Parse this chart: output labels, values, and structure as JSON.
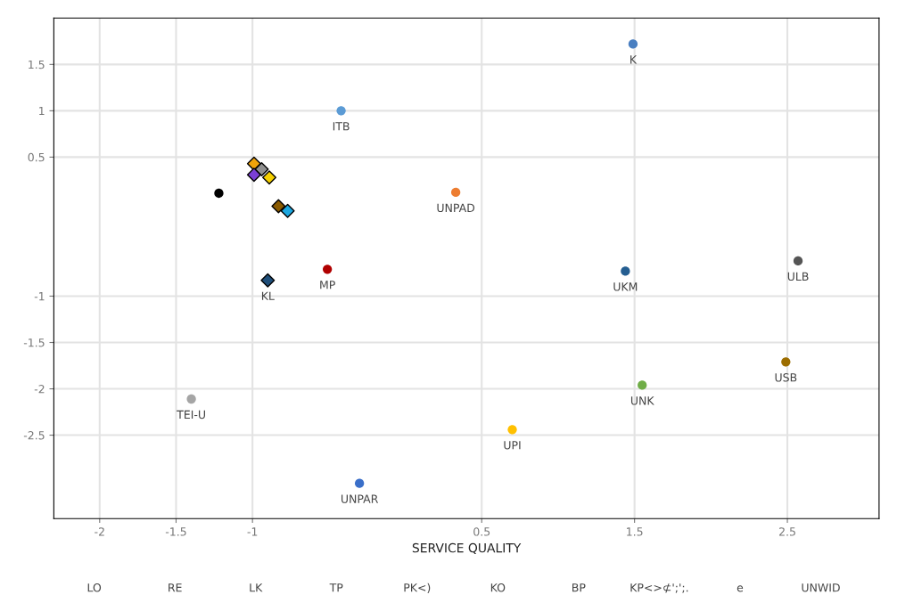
{
  "chart_data": {
    "type": "scatter",
    "xlabel": "SERVICE QUALITY",
    "xlim": [
      -2.3,
      3.1
    ],
    "ylim": [
      -3.4,
      2.0
    ],
    "xticks": [
      -2,
      -1.5,
      -1,
      0.5,
      1.5,
      2.5
    ],
    "yticks": [
      -2.5,
      -2,
      -1.5,
      -1,
      0.5,
      1,
      1.5
    ],
    "grid": true,
    "series": [
      {
        "name": "ITB",
        "color": "#5b9bd5",
        "marker": "circle",
        "x": [
          -0.42
        ],
        "values": [
          1.0
        ]
      },
      {
        "name": "UNPAD",
        "color": "#ed7d31",
        "marker": "circle",
        "x": [
          0.33
        ],
        "values": [
          0.12
        ]
      },
      {
        "color": "#000000",
        "marker": "circle",
        "x": [
          -1.22
        ],
        "values": [
          0.11
        ]
      },
      {
        "color": "#f0a30a",
        "marker": "diamond",
        "x": [
          -0.99
        ],
        "values": [
          0.43
        ]
      },
      {
        "color": "#909090",
        "marker": "diamond",
        "x": [
          -0.94
        ],
        "values": [
          0.37
        ]
      },
      {
        "color": "#7b3fd6",
        "marker": "diamond",
        "x": [
          -0.99
        ],
        "values": [
          0.31
        ]
      },
      {
        "color": "#f5d000",
        "marker": "diamond",
        "x": [
          -0.89
        ],
        "values": [
          0.28
        ]
      },
      {
        "color": "#8a5a00",
        "marker": "diamond",
        "x": [
          -0.83
        ],
        "values": [
          -0.03
        ]
      },
      {
        "color": "#1ca7e0",
        "marker": "diamond",
        "x": [
          -0.77
        ],
        "values": [
          -0.08
        ]
      },
      {
        "name": "KL",
        "color": "#1f4e79",
        "marker": "diamond",
        "x": [
          -0.9
        ],
        "values": [
          -0.83
        ]
      },
      {
        "name": "MP",
        "color": "#b00000",
        "marker": "circle",
        "x": [
          -0.51
        ],
        "values": [
          -0.71
        ]
      },
      {
        "name": "K",
        "color": "#4a7fc1",
        "marker": "circle",
        "x": [
          1.49
        ],
        "values": [
          1.72
        ]
      },
      {
        "name": "UKM",
        "color": "#255e91",
        "marker": "circle",
        "x": [
          1.44
        ],
        "values": [
          -0.73
        ]
      },
      {
        "name": "ULB",
        "color": "#555555",
        "marker": "circle",
        "x": [
          2.57
        ],
        "values": [
          -0.62
        ]
      },
      {
        "name": "UNK",
        "color": "#70ad47",
        "marker": "circle",
        "x": [
          1.55
        ],
        "values": [
          -1.96
        ]
      },
      {
        "name": "USB",
        "color": "#9c6d00",
        "marker": "circle",
        "x": [
          2.49
        ],
        "values": [
          -1.71
        ]
      },
      {
        "name": "TEI-U",
        "color": "#a5a5a5",
        "marker": "circle",
        "x": [
          -1.4
        ],
        "values": [
          -2.11
        ]
      },
      {
        "name": "UPI",
        "color": "#ffc000",
        "marker": "circle",
        "x": [
          0.7
        ],
        "values": [
          -2.44
        ]
      },
      {
        "name": "UNPAR",
        "color": "#3a6fc9",
        "marker": "circle",
        "x": [
          -0.3
        ],
        "values": [
          -3.02
        ]
      }
    ],
    "annotations": [
      "LO",
      "RE",
      "LK",
      "TP",
      "PK<)",
      "KO",
      "BP",
      "KP<>⊄';';.",
      "e",
      "UNWID"
    ]
  }
}
